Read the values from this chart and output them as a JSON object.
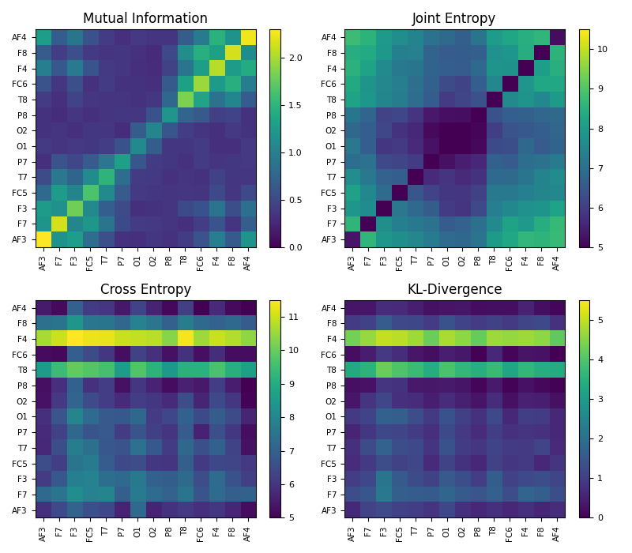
{
  "labels_y": [
    "AF4",
    "F8",
    "F4",
    "FC6",
    "T8",
    "P8",
    "O2",
    "O1",
    "P7",
    "T7",
    "FC5",
    "F3",
    "F7",
    "AF3"
  ],
  "labels_x": [
    "AF3",
    "F7",
    "F3",
    "FC5",
    "T7",
    "P7",
    "O1",
    "O2",
    "P8",
    "T8",
    "FC6",
    "F4",
    "F8",
    "AF4"
  ],
  "titles": [
    "Mutual Information",
    "Joint Entropy",
    "Cross Entropy",
    "KL-Divergence"
  ],
  "mi_vmin": 0.0,
  "mi_vmax": 2.3,
  "je_vmin": 5.0,
  "je_vmax": 10.5,
  "ce_vmin": 5.0,
  "ce_vmax": 11.5,
  "kl_vmin": 0.0,
  "kl_vmax": 5.5,
  "cmap": "viridis"
}
